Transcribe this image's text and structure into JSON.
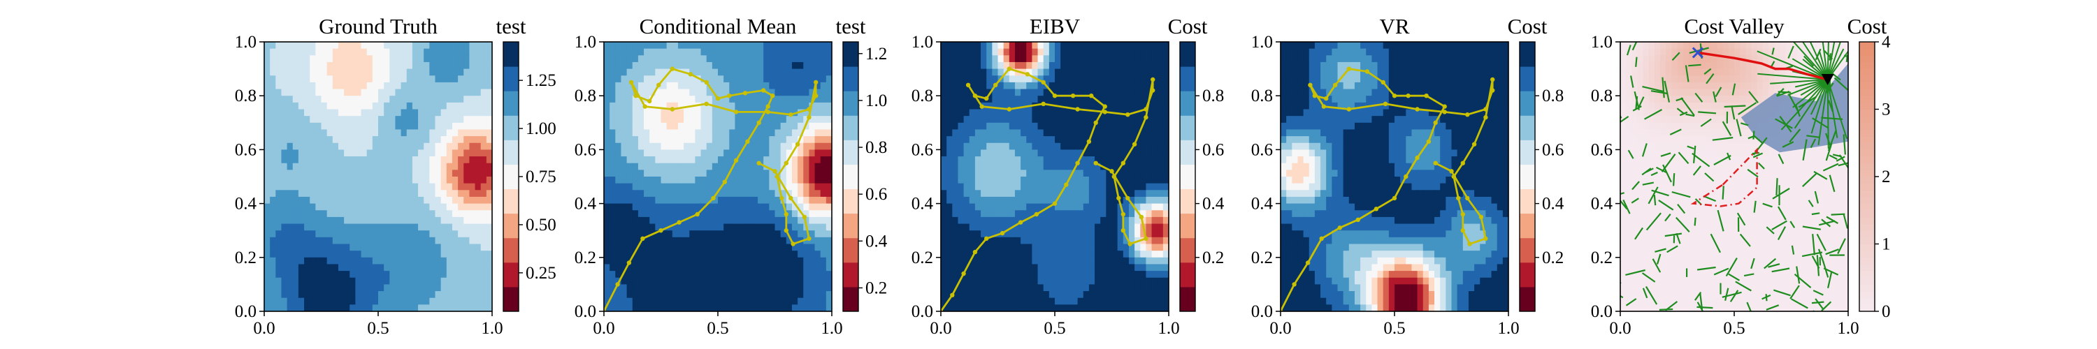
{
  "colors": {
    "rdbu": [
      "#67001f",
      "#b2182b",
      "#d6604d",
      "#f4a582",
      "#fddbc7",
      "#f7f7f7",
      "#d1e5f0",
      "#92c5de",
      "#4393c3",
      "#2166ac",
      "#053061"
    ],
    "path": "#c8c000",
    "tree": "#1e8c1e",
    "best_path": "#e01010",
    "obstacle": "#e02020",
    "start_marker": "#3050d0"
  },
  "chart_data": [
    {
      "type": "heatmap",
      "title": "Ground Truth",
      "xlabel": "",
      "ylabel": "",
      "xlim": [
        0,
        1
      ],
      "ylim": [
        0,
        1
      ],
      "xticks": [
        "0.0",
        "0.5",
        "1.0"
      ],
      "yticks": [
        "0.0",
        "0.2",
        "0.4",
        "0.6",
        "0.8",
        "1.0"
      ],
      "colorbar": {
        "label": "test",
        "range": [
          0.05,
          1.45
        ],
        "ticks": [
          "0.25",
          "0.50",
          "0.75",
          "1.00",
          "1.25"
        ],
        "tick_values": [
          0.25,
          0.5,
          0.75,
          1.0,
          1.25
        ]
      },
      "field": {
        "base": 0.95,
        "terms": [
          {
            "x": 0.93,
            "y": 0.52,
            "s": 0.11,
            "a": -0.75
          },
          {
            "x": 0.28,
            "y": 0.06,
            "s": 0.16,
            "a": 0.45
          },
          {
            "x": 0.65,
            "y": 0.18,
            "s": 0.14,
            "a": 0.2
          },
          {
            "x": 0.08,
            "y": 0.28,
            "s": 0.12,
            "a": 0.2
          },
          {
            "x": 0.38,
            "y": 0.9,
            "s": 0.13,
            "a": -0.35
          },
          {
            "x": 0.62,
            "y": 0.72,
            "s": 0.08,
            "a": 0.18
          },
          {
            "x": 0.12,
            "y": 0.6,
            "s": 0.1,
            "a": 0.12
          },
          {
            "x": 0.8,
            "y": 0.95,
            "s": 0.08,
            "a": 0.25
          }
        ]
      }
    },
    {
      "type": "heatmap",
      "title": "Conditional Mean",
      "xlabel": "",
      "ylabel": "",
      "xlim": [
        0,
        1
      ],
      "ylim": [
        0,
        1
      ],
      "xticks": [
        "0.0",
        "0.5",
        "1.0"
      ],
      "yticks": [
        "0.0",
        "0.2",
        "0.4",
        "0.6",
        "0.8",
        "1.0"
      ],
      "colorbar": {
        "label": "test",
        "range": [
          0.1,
          1.25
        ],
        "ticks": [
          "0.2",
          "0.4",
          "0.6",
          "0.8",
          "1.0",
          "1.2"
        ],
        "tick_values": [
          0.2,
          0.4,
          0.6,
          0.8,
          1.0,
          1.2
        ]
      },
      "field": {
        "base": 1.0,
        "terms": [
          {
            "x": 0.98,
            "y": 0.52,
            "s": 0.12,
            "a": -0.9
          },
          {
            "x": 0.3,
            "y": 0.72,
            "s": 0.14,
            "a": -0.4
          },
          {
            "x": 0.35,
            "y": 0.05,
            "s": 0.18,
            "a": 0.3
          },
          {
            "x": 0.7,
            "y": 0.15,
            "s": 0.15,
            "a": 0.3
          },
          {
            "x": 0.05,
            "y": 0.3,
            "s": 0.12,
            "a": 0.2
          },
          {
            "x": 0.85,
            "y": 0.92,
            "s": 0.1,
            "a": 0.15
          }
        ]
      },
      "path": [
        [
          0.0,
          0.0
        ],
        [
          0.06,
          0.1
        ],
        [
          0.11,
          0.18
        ],
        [
          0.17,
          0.27
        ],
        [
          0.25,
          0.3
        ],
        [
          0.33,
          0.33
        ],
        [
          0.41,
          0.36
        ],
        [
          0.48,
          0.42
        ],
        [
          0.53,
          0.48
        ],
        [
          0.58,
          0.56
        ],
        [
          0.63,
          0.63
        ],
        [
          0.68,
          0.7
        ],
        [
          0.72,
          0.76
        ],
        [
          0.74,
          0.8
        ],
        [
          0.7,
          0.82
        ],
        [
          0.62,
          0.81
        ],
        [
          0.55,
          0.8
        ],
        [
          0.5,
          0.79
        ],
        [
          0.45,
          0.85
        ],
        [
          0.38,
          0.88
        ],
        [
          0.3,
          0.9
        ],
        [
          0.24,
          0.84
        ],
        [
          0.2,
          0.78
        ],
        [
          0.14,
          0.8
        ],
        [
          0.12,
          0.85
        ],
        [
          0.18,
          0.76
        ],
        [
          0.3,
          0.75
        ],
        [
          0.45,
          0.77
        ],
        [
          0.58,
          0.74
        ],
        [
          0.72,
          0.74
        ],
        [
          0.82,
          0.73
        ],
        [
          0.9,
          0.75
        ],
        [
          0.93,
          0.8
        ],
        [
          0.93,
          0.85
        ],
        [
          0.9,
          0.72
        ],
        [
          0.85,
          0.62
        ],
        [
          0.8,
          0.55
        ],
        [
          0.76,
          0.5
        ],
        [
          0.78,
          0.42
        ],
        [
          0.8,
          0.36
        ],
        [
          0.8,
          0.3
        ],
        [
          0.83,
          0.25
        ],
        [
          0.9,
          0.27
        ],
        [
          0.88,
          0.35
        ],
        [
          0.82,
          0.42
        ],
        [
          0.75,
          0.52
        ],
        [
          0.68,
          0.55
        ]
      ]
    },
    {
      "type": "heatmap",
      "title": "EIBV",
      "xlabel": "",
      "ylabel": "",
      "xlim": [
        0,
        1
      ],
      "ylim": [
        0,
        1
      ],
      "xticks": [
        "0.0",
        "0.5",
        "1.0"
      ],
      "yticks": [
        "0.0",
        "0.2",
        "0.4",
        "0.6",
        "0.8",
        "1.0"
      ],
      "colorbar": {
        "label": "Cost",
        "range": [
          0.0,
          1.0
        ],
        "ticks": [
          "0.2",
          "0.4",
          "0.6",
          "0.8"
        ],
        "tick_values": [
          0.2,
          0.4,
          0.6,
          0.8
        ]
      },
      "field": {
        "base": 1.0,
        "terms": [
          {
            "x": 0.35,
            "y": 0.97,
            "s": 0.08,
            "a": -1.0
          },
          {
            "x": 0.95,
            "y": 0.3,
            "s": 0.08,
            "a": -0.9
          },
          {
            "x": 0.25,
            "y": 0.52,
            "s": 0.15,
            "a": -0.35
          },
          {
            "x": 0.6,
            "y": 0.45,
            "s": 0.1,
            "a": -0.2
          },
          {
            "x": 0.55,
            "y": 0.15,
            "s": 0.12,
            "a": -0.15
          }
        ]
      },
      "path": [
        [
          0.0,
          0.0
        ],
        [
          0.05,
          0.06
        ],
        [
          0.1,
          0.14
        ],
        [
          0.15,
          0.22
        ],
        [
          0.2,
          0.27
        ],
        [
          0.27,
          0.29
        ],
        [
          0.35,
          0.33
        ],
        [
          0.42,
          0.36
        ],
        [
          0.5,
          0.4
        ],
        [
          0.55,
          0.47
        ],
        [
          0.6,
          0.55
        ],
        [
          0.65,
          0.63
        ],
        [
          0.68,
          0.7
        ],
        [
          0.72,
          0.76
        ],
        [
          0.66,
          0.8
        ],
        [
          0.58,
          0.8
        ],
        [
          0.5,
          0.8
        ],
        [
          0.45,
          0.85
        ],
        [
          0.38,
          0.88
        ],
        [
          0.3,
          0.9
        ],
        [
          0.24,
          0.84
        ],
        [
          0.2,
          0.79
        ],
        [
          0.15,
          0.8
        ],
        [
          0.12,
          0.84
        ],
        [
          0.18,
          0.76
        ],
        [
          0.3,
          0.75
        ],
        [
          0.45,
          0.77
        ],
        [
          0.6,
          0.75
        ],
        [
          0.72,
          0.74
        ],
        [
          0.82,
          0.73
        ],
        [
          0.9,
          0.75
        ],
        [
          0.93,
          0.82
        ],
        [
          0.93,
          0.86
        ],
        [
          0.9,
          0.72
        ],
        [
          0.85,
          0.62
        ],
        [
          0.8,
          0.55
        ],
        [
          0.76,
          0.5
        ],
        [
          0.78,
          0.42
        ],
        [
          0.8,
          0.36
        ],
        [
          0.8,
          0.3
        ],
        [
          0.83,
          0.25
        ],
        [
          0.9,
          0.27
        ],
        [
          0.88,
          0.35
        ],
        [
          0.82,
          0.42
        ],
        [
          0.75,
          0.52
        ],
        [
          0.68,
          0.55
        ]
      ]
    },
    {
      "type": "heatmap",
      "title": "VR",
      "xlabel": "",
      "ylabel": "",
      "xlim": [
        0,
        1
      ],
      "ylim": [
        0,
        1
      ],
      "xticks": [
        "0.0",
        "0.5",
        "1.0"
      ],
      "yticks": [
        "0.0",
        "0.2",
        "0.4",
        "0.6",
        "0.8",
        "1.0"
      ],
      "colorbar": {
        "label": "Cost",
        "range": [
          0.0,
          1.0
        ],
        "ticks": [
          "0.2",
          "0.4",
          "0.6",
          "0.8"
        ],
        "tick_values": [
          0.2,
          0.4,
          0.6,
          0.8
        ]
      },
      "field": {
        "base": 1.0,
        "terms": [
          {
            "x": 0.55,
            "y": 0.05,
            "s": 0.12,
            "a": -1.0
          },
          {
            "x": 0.08,
            "y": 0.52,
            "s": 0.1,
            "a": -0.6
          },
          {
            "x": 0.3,
            "y": 0.88,
            "s": 0.12,
            "a": -0.3
          },
          {
            "x": 0.62,
            "y": 0.6,
            "s": 0.1,
            "a": -0.25
          },
          {
            "x": 0.85,
            "y": 0.28,
            "s": 0.1,
            "a": -0.3
          },
          {
            "x": 0.3,
            "y": 0.2,
            "s": 0.12,
            "a": -0.25
          }
        ]
      },
      "path": [
        [
          0.0,
          0.0
        ],
        [
          0.06,
          0.1
        ],
        [
          0.12,
          0.18
        ],
        [
          0.18,
          0.27
        ],
        [
          0.26,
          0.31
        ],
        [
          0.34,
          0.34
        ],
        [
          0.42,
          0.38
        ],
        [
          0.5,
          0.42
        ],
        [
          0.55,
          0.5
        ],
        [
          0.6,
          0.57
        ],
        [
          0.65,
          0.63
        ],
        [
          0.68,
          0.7
        ],
        [
          0.72,
          0.76
        ],
        [
          0.64,
          0.8
        ],
        [
          0.56,
          0.8
        ],
        [
          0.5,
          0.8
        ],
        [
          0.45,
          0.85
        ],
        [
          0.38,
          0.89
        ],
        [
          0.3,
          0.9
        ],
        [
          0.24,
          0.84
        ],
        [
          0.2,
          0.79
        ],
        [
          0.15,
          0.8
        ],
        [
          0.13,
          0.84
        ],
        [
          0.19,
          0.76
        ],
        [
          0.3,
          0.75
        ],
        [
          0.46,
          0.77
        ],
        [
          0.6,
          0.75
        ],
        [
          0.72,
          0.74
        ],
        [
          0.82,
          0.73
        ],
        [
          0.9,
          0.75
        ],
        [
          0.93,
          0.82
        ],
        [
          0.93,
          0.86
        ],
        [
          0.9,
          0.72
        ],
        [
          0.85,
          0.62
        ],
        [
          0.8,
          0.55
        ],
        [
          0.76,
          0.5
        ],
        [
          0.78,
          0.42
        ],
        [
          0.8,
          0.36
        ],
        [
          0.8,
          0.3
        ],
        [
          0.83,
          0.25
        ],
        [
          0.9,
          0.27
        ],
        [
          0.88,
          0.35
        ],
        [
          0.82,
          0.42
        ],
        [
          0.75,
          0.52
        ],
        [
          0.68,
          0.55
        ]
      ]
    },
    {
      "type": "heatmap",
      "title": "Cost Valley",
      "xlabel": "",
      "ylabel": "",
      "xlim": [
        0,
        1
      ],
      "ylim": [
        0,
        1
      ],
      "xticks": [
        "0.0",
        "0.5",
        "1.0"
      ],
      "yticks": [
        "0.0",
        "0.2",
        "0.4",
        "0.6",
        "0.8",
        "1.0"
      ],
      "colorbar": {
        "label": "Cost",
        "range": [
          0,
          4
        ],
        "ticks": [
          "0",
          "1",
          "2",
          "3",
          "4"
        ],
        "tick_values": [
          0,
          1,
          2,
          3,
          4
        ],
        "cmap": "white-red"
      },
      "field": {
        "base": 0.0,
        "terms": [
          {
            "x": 0.35,
            "y": 0.97,
            "s": 0.12,
            "a": 2.0
          },
          {
            "x": 0.55,
            "y": 0.88,
            "s": 0.12,
            "a": 1.2
          },
          {
            "x": 0.2,
            "y": 0.85,
            "s": 0.1,
            "a": 0.8
          }
        ]
      },
      "start": [
        0.34,
        0.96
      ],
      "goal": [
        0.91,
        0.86
      ],
      "best_path": [
        [
          0.34,
          0.96
        ],
        [
          0.42,
          0.95
        ],
        [
          0.5,
          0.94
        ],
        [
          0.56,
          0.93
        ],
        [
          0.62,
          0.92
        ],
        [
          0.68,
          0.9
        ],
        [
          0.74,
          0.9
        ],
        [
          0.82,
          0.88
        ],
        [
          0.91,
          0.86
        ]
      ],
      "obstacle": [
        [
          0.45,
          0.47
        ],
        [
          0.6,
          0.6
        ],
        [
          0.6,
          0.46
        ],
        [
          0.52,
          0.4
        ],
        [
          0.44,
          0.39
        ],
        [
          0.32,
          0.4
        ]
      ],
      "shaded_region": [
        [
          0.53,
          0.72
        ],
        [
          0.68,
          0.81
        ],
        [
          0.86,
          0.78
        ],
        [
          1.0,
          0.92
        ],
        [
          1.0,
          0.63
        ],
        [
          0.86,
          0.61
        ],
        [
          0.7,
          0.59
        ],
        [
          0.6,
          0.64
        ]
      ]
    }
  ]
}
